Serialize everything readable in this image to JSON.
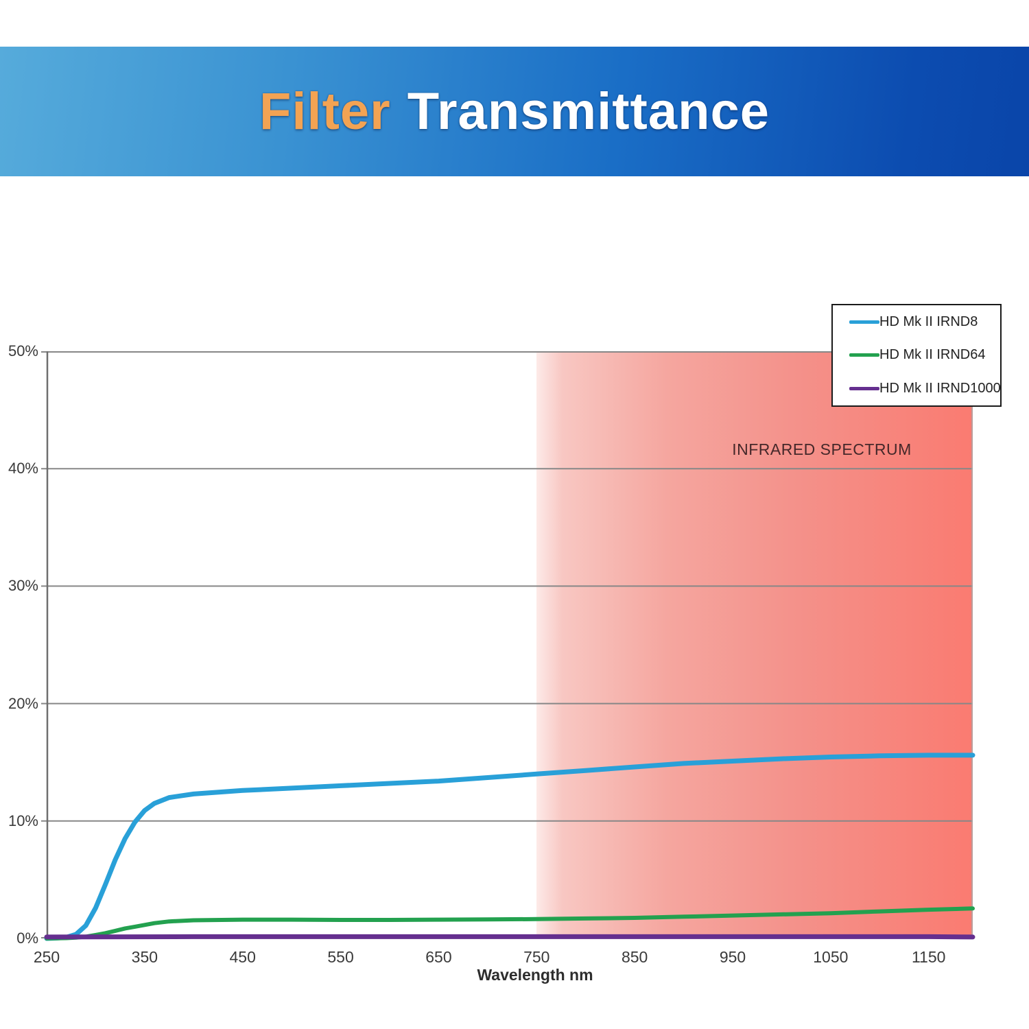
{
  "header": {
    "title_accent": "Filter",
    "title_rest": "Transmittance",
    "accent_color": "#f3a353",
    "banner_gradient": [
      "#56abdb",
      "#0a45a9"
    ]
  },
  "chart_data": {
    "type": "line",
    "title": "Filter Transmittance",
    "xlabel": "Wavelength nm",
    "ylabel": "",
    "x_range_nm": [
      250,
      1195
    ],
    "y_range_percent": [
      0,
      50
    ],
    "x_ticks": [
      250,
      350,
      450,
      550,
      650,
      750,
      850,
      950,
      1050,
      1150
    ],
    "y_ticks_percent": [
      0,
      10,
      20,
      30,
      40,
      50
    ],
    "grid": true,
    "legend_position": "top-right",
    "infrared_region": {
      "label": "INFRARED SPECTRUM",
      "start_nm": 750,
      "end_nm": 1195,
      "gradient": [
        "#fdeae8",
        "#f5a69f",
        "#fa7b71"
      ]
    },
    "series": [
      {
        "name": "HD Mk II IRND8",
        "color": "#29a0d8",
        "stroke_width": 7,
        "points": [
          [
            250,
            0
          ],
          [
            260,
            0.03
          ],
          [
            270,
            0.1
          ],
          [
            280,
            0.35
          ],
          [
            290,
            1.1
          ],
          [
            300,
            2.6
          ],
          [
            310,
            4.6
          ],
          [
            320,
            6.7
          ],
          [
            330,
            8.5
          ],
          [
            340,
            9.9
          ],
          [
            350,
            10.9
          ],
          [
            360,
            11.5
          ],
          [
            375,
            12.0
          ],
          [
            400,
            12.3
          ],
          [
            450,
            12.6
          ],
          [
            500,
            12.8
          ],
          [
            550,
            13.0
          ],
          [
            600,
            13.2
          ],
          [
            650,
            13.4
          ],
          [
            700,
            13.7
          ],
          [
            750,
            14.0
          ],
          [
            800,
            14.3
          ],
          [
            850,
            14.6
          ],
          [
            900,
            14.9
          ],
          [
            950,
            15.1
          ],
          [
            1000,
            15.3
          ],
          [
            1050,
            15.45
          ],
          [
            1100,
            15.55
          ],
          [
            1150,
            15.6
          ],
          [
            1195,
            15.6
          ]
        ]
      },
      {
        "name": "HD Mk II IRND64",
        "color": "#23a14f",
        "stroke_width": 6,
        "points": [
          [
            250,
            0
          ],
          [
            270,
            0.03
          ],
          [
            280,
            0.07
          ],
          [
            290,
            0.15
          ],
          [
            300,
            0.3
          ],
          [
            310,
            0.45
          ],
          [
            320,
            0.65
          ],
          [
            330,
            0.85
          ],
          [
            340,
            1.0
          ],
          [
            350,
            1.15
          ],
          [
            360,
            1.3
          ],
          [
            375,
            1.45
          ],
          [
            400,
            1.55
          ],
          [
            450,
            1.6
          ],
          [
            500,
            1.6
          ],
          [
            550,
            1.58
          ],
          [
            600,
            1.58
          ],
          [
            650,
            1.6
          ],
          [
            700,
            1.62
          ],
          [
            750,
            1.65
          ],
          [
            800,
            1.7
          ],
          [
            850,
            1.75
          ],
          [
            900,
            1.85
          ],
          [
            950,
            1.95
          ],
          [
            1000,
            2.05
          ],
          [
            1050,
            2.15
          ],
          [
            1100,
            2.3
          ],
          [
            1150,
            2.45
          ],
          [
            1195,
            2.55
          ]
        ]
      },
      {
        "name": "HD Mk II IRND1000",
        "color": "#652f8f",
        "stroke_width": 7,
        "points": [
          [
            250,
            0.12
          ],
          [
            400,
            0.15
          ],
          [
            700,
            0.15
          ],
          [
            1000,
            0.15
          ],
          [
            1150,
            0.15
          ],
          [
            1195,
            0.12
          ]
        ]
      }
    ]
  }
}
